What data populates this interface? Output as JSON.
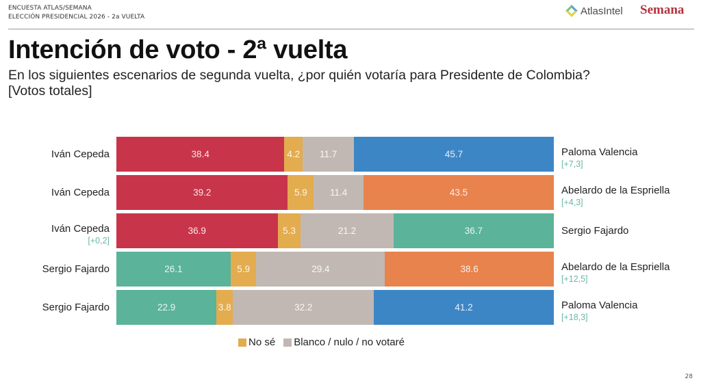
{
  "header": {
    "line1": "ENCUESTA ATLAS/SEMANA",
    "line2": "ELECCIÓN PRESIDENCIAL 2026 - 2a VUELTA",
    "logo_atlas": "AtlasIntel",
    "logo_semana": "Semana"
  },
  "title": "Intención de voto - 2ª vuelta",
  "subtitle_line1": "En los siguientes escenarios de segunda vuelta, ¿por quién votaría para Presidente de Colombia?",
  "subtitle_line2": "[Votos totales]",
  "page_number": "28",
  "colors": {
    "cepeda": "#c8354a",
    "valencia": "#3d86c6",
    "espriella": "#e8834d",
    "fajardo": "#5bb39a",
    "no_se": "#e3ac4f",
    "blanco": "#c1b8b3"
  },
  "chart_data": {
    "type": "bar",
    "orientation": "horizontal-stacked-100",
    "title": "Intención de voto - 2ª vuelta",
    "subtitle": "En los siguientes escenarios de segunda vuelta, ¿por quién votaría para Presidente de Colombia? [Votos totales]",
    "xlim": [
      0,
      100
    ],
    "grid": false,
    "legend": {
      "placement": "bottom-center",
      "entries": [
        {
          "label": "No sé",
          "color_key": "no_se"
        },
        {
          "label": "Blanco / nulo / no votaré",
          "color_key": "blanco"
        }
      ]
    },
    "scenarios": [
      {
        "left_candidate": "Iván Cepeda",
        "left_value": 38.4,
        "left_color_key": "cepeda",
        "left_delta": "",
        "no_se": 4.2,
        "blanco": 11.7,
        "right_candidate": "Paloma Valencia",
        "right_value": 45.7,
        "right_color_key": "valencia",
        "right_delta": "[+7,3]"
      },
      {
        "left_candidate": "Iván Cepeda",
        "left_value": 39.2,
        "left_color_key": "cepeda",
        "left_delta": "",
        "no_se": 5.9,
        "blanco": 11.4,
        "right_candidate": "Abelardo de la Espriella",
        "right_value": 43.5,
        "right_color_key": "espriella",
        "right_delta": "[+4,3]"
      },
      {
        "left_candidate": "Iván Cepeda",
        "left_value": 36.9,
        "left_color_key": "cepeda",
        "left_delta": "[+0,2]",
        "no_se": 5.3,
        "blanco": 21.2,
        "right_candidate": "Sergio Fajardo",
        "right_value": 36.7,
        "right_color_key": "fajardo",
        "right_delta": ""
      },
      {
        "left_candidate": "Sergio Fajardo",
        "left_value": 26.1,
        "left_color_key": "fajardo",
        "left_delta": "",
        "no_se": 5.9,
        "blanco": 29.4,
        "right_candidate": "Abelardo de la Espriella",
        "right_value": 38.6,
        "right_color_key": "espriella",
        "right_delta": "[+12,5]"
      },
      {
        "left_candidate": "Sergio Fajardo",
        "left_value": 22.9,
        "left_color_key": "fajardo",
        "left_delta": "",
        "no_se": 3.8,
        "blanco": 32.2,
        "right_candidate": "Paloma Valencia",
        "right_value": 41.2,
        "right_color_key": "valencia",
        "right_delta": "[+18,3]"
      }
    ]
  }
}
